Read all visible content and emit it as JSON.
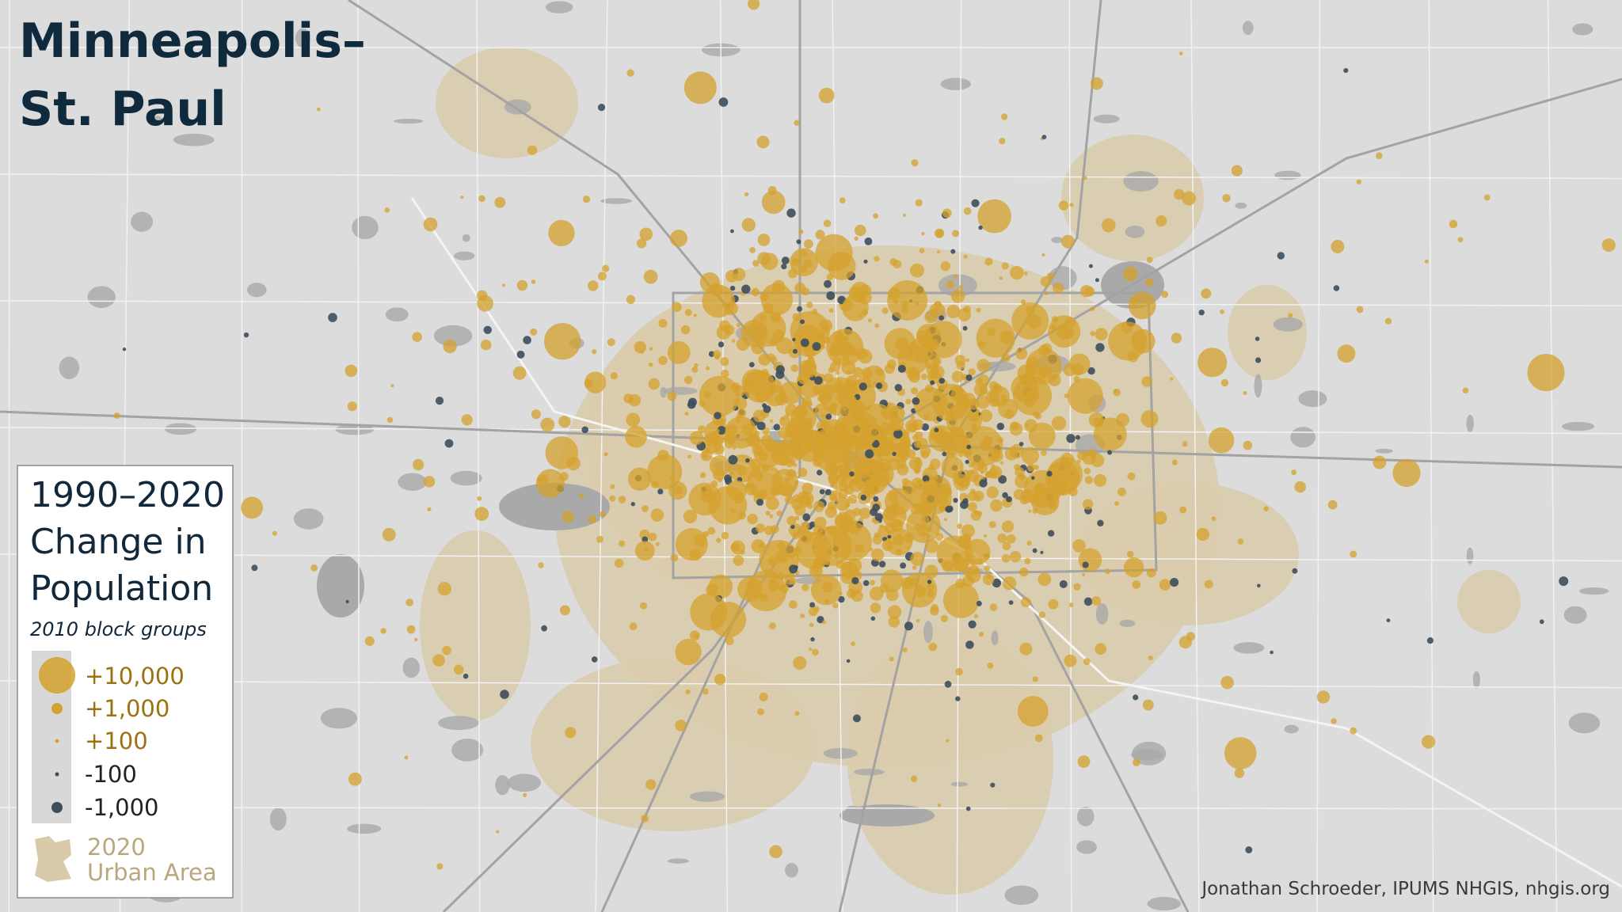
{
  "title": [
    "Minneapolis–",
    "St. Paul"
  ],
  "legend": {
    "title": [
      "1990–2020",
      "Change in",
      "Population"
    ],
    "subtitle": "2010 block groups",
    "items": [
      "+10,000",
      "+1,000",
      "+100",
      "-100",
      "-1,000"
    ],
    "area_label": [
      "2020",
      "Urban Area"
    ]
  },
  "credit": "Jonathan Schroeder, IPUMS NHGIS, nhgis.org"
}
